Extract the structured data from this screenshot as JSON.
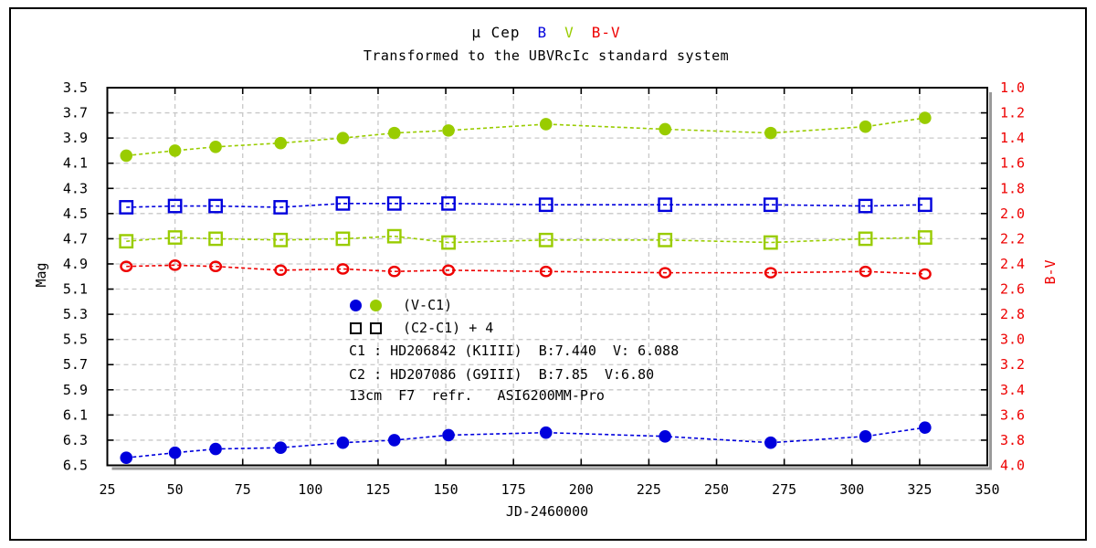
{
  "page": {
    "title": {
      "star": "μ Cep",
      "b": "B",
      "v": "V",
      "bv": "B-V"
    },
    "subtitle": "Transformed to the UBVRcIc standard system"
  },
  "legend": {
    "row1_label": "(V-C1)",
    "row2_label": "(C2-C1) + 4",
    "c1_line": "C1 : HD206842 (K1III)  B:7.440  V: 6.088",
    "c2_line": "C2 : HD207086 (G9III)  B:7.85  V:6.80",
    "equipment_line": "13cm  F7  refr.   ASI6200MM-Pro"
  },
  "colors": {
    "b": "#0000dd",
    "v": "#99cc00",
    "bv": "#ee0000",
    "grid": "#c8c8c8",
    "frame": "#000000",
    "shadow": "#999999"
  },
  "chart_data": {
    "type": "line",
    "title": "μ Cep  B  V  B-V",
    "subtitle": "Transformed to the UBVRcIc standard system",
    "xlabel": "JD-2460000",
    "ylabel_left": "Mag",
    "ylabel_right": "B-V",
    "xlim": [
      25,
      350
    ],
    "ylim_left": [
      3.5,
      6.5
    ],
    "ylim_right": [
      1.0,
      4.0
    ],
    "grid": "dashed",
    "x_ticks": [
      25,
      50,
      75,
      100,
      125,
      150,
      175,
      200,
      225,
      250,
      275,
      300,
      325,
      350
    ],
    "y_ticks_left": [
      "3.5",
      "3.7",
      "3.9",
      "4.1",
      "4.3",
      "4.5",
      "4.7",
      "4.9",
      "5.1",
      "5.3",
      "5.5",
      "5.7",
      "5.9",
      "6.1",
      "6.3",
      "6.5"
    ],
    "y_ticks_right": [
      "1.0",
      "1.2",
      "1.4",
      "1.6",
      "1.8",
      "2.0",
      "2.2",
      "2.4",
      "2.6",
      "2.8",
      "3.0",
      "3.2",
      "3.4",
      "3.6",
      "3.8",
      "4.0"
    ],
    "x": [
      32,
      50,
      65,
      89,
      112,
      131,
      151,
      187,
      231,
      270,
      305,
      327
    ],
    "series": [
      {
        "name": "V (V-C1)",
        "marker": "filled-circle",
        "color_key": "v",
        "axis": "left",
        "values": [
          4.04,
          4.0,
          3.97,
          3.94,
          3.9,
          3.86,
          3.84,
          3.79,
          3.83,
          3.86,
          3.81,
          3.74
        ]
      },
      {
        "name": "B (V-C1)",
        "marker": "filled-circle",
        "color_key": "b",
        "axis": "left",
        "values": [
          6.44,
          6.4,
          6.37,
          6.36,
          6.32,
          6.3,
          6.26,
          6.24,
          6.27,
          6.32,
          6.27,
          6.2
        ]
      },
      {
        "name": "B check (C2-C1)+4",
        "marker": "open-square",
        "color_key": "b",
        "axis": "left",
        "values": [
          4.45,
          4.44,
          4.44,
          4.45,
          4.42,
          4.42,
          4.42,
          4.43,
          4.43,
          4.43,
          4.44,
          4.43
        ]
      },
      {
        "name": "V check (C2-C1)+4",
        "marker": "open-square",
        "color_key": "v",
        "axis": "left",
        "values": [
          4.72,
          4.69,
          4.7,
          4.71,
          4.7,
          4.68,
          4.73,
          4.71,
          4.71,
          4.73,
          4.7,
          4.69
        ]
      },
      {
        "name": "B-V",
        "marker": "open-circle",
        "color_key": "bv",
        "axis": "right",
        "values": [
          2.42,
          2.41,
          2.42,
          2.45,
          2.44,
          2.46,
          2.45,
          2.46,
          2.47,
          2.47,
          2.46,
          2.48
        ]
      }
    ]
  }
}
